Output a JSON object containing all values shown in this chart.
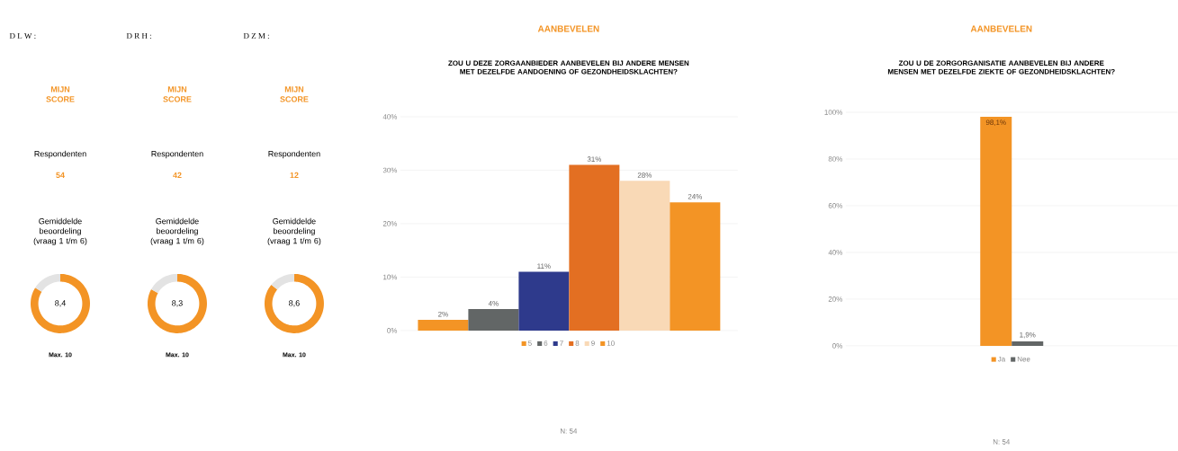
{
  "chart_data": [
    {
      "type": "donut",
      "title": "D L W :",
      "subtitle": "MIJN SCORE",
      "categories": [
        null,
        null
      ],
      "values": [
        84,
        16
      ],
      "colors": [
        "#f39425",
        "#e3e3e3"
      ],
      "annotations": [
        "Respondenten",
        "54",
        "Gemiddelde beoordeling (vraag 1 t/m 6)",
        "8,4",
        "Max. 10"
      ]
    },
    {
      "type": "donut",
      "title": "D R H :",
      "subtitle": "MIJN SCORE",
      "categories": [
        null,
        null
      ],
      "values": [
        83,
        17
      ],
      "colors": [
        "#f39425",
        "#e3e3e3"
      ],
      "annotations": [
        "Respondenten",
        "42",
        "Gemiddelde beoordeling (vraag 1 t/m 6)",
        "8,3",
        "Max. 10"
      ]
    },
    {
      "type": "donut",
      "title": "D Z M :",
      "subtitle": "MIJN SCORE",
      "categories": [
        null,
        null
      ],
      "values": [
        86,
        14
      ],
      "colors": [
        "#f39425",
        "#e3e3e3"
      ],
      "annotations": [
        "Respondenten",
        "12",
        "Gemiddelde beoordeling (vraag 1 t/m 6)",
        "8,6",
        "Max. 10"
      ]
    },
    {
      "type": "bar",
      "title": "AANBEVELEN",
      "subtitle": "ZOU U DEZE ZORGAANBIEDER AANBEVELEN BIJ ANDERE MENSEN MET DEZELFDE AANDOENING OF GEZONDHEIDSKLACHTEN?",
      "categories": [
        null
      ],
      "series": [
        {
          "name": "5",
          "color": "#f39425",
          "values": [
            2
          ],
          "value_labels": [
            "2%"
          ]
        },
        {
          "name": "6",
          "color": "#626666",
          "values": [
            4
          ],
          "value_labels": [
            "4%"
          ]
        },
        {
          "name": "7",
          "color": "#2e3a8c",
          "values": [
            11
          ],
          "value_labels": [
            "11%"
          ]
        },
        {
          "name": "8",
          "color": "#e36f22",
          "values": [
            31
          ],
          "value_labels": [
            "31%"
          ]
        },
        {
          "name": "9",
          "color": "#f9d9b6",
          "values": [
            28
          ],
          "value_labels": [
            "28%"
          ]
        },
        {
          "name": "10",
          "color": "#f39425",
          "values": [
            24
          ],
          "value_labels": [
            "24%"
          ]
        }
      ],
      "ylim": [
        0,
        40
      ],
      "yticks": [
        {
          "value": 0,
          "label": "0%"
        },
        {
          "value": 10,
          "label": "10%"
        },
        {
          "value": 20,
          "label": "20%"
        },
        {
          "value": 30,
          "label": "30%"
        },
        {
          "value": 40,
          "label": "40%"
        }
      ],
      "grid": "y",
      "legend": "bottom",
      "annotations": [
        "N: 54"
      ]
    },
    {
      "type": "bar",
      "title": "AANBEVELEN",
      "subtitle": "ZOU U DE ZORGORGANISATIE AANBEVELEN BIJ ANDERE MENSEN MET DEZELFDE ZIEKTE OF GEZONDHEIDSKLACHTEN?",
      "categories": [
        null
      ],
      "series": [
        {
          "name": "Ja",
          "color": "#f39425",
          "values": [
            98.1
          ],
          "value_labels": [
            "98,1%"
          ]
        },
        {
          "name": "Nee",
          "color": "#626666",
          "values": [
            1.9
          ],
          "value_labels": [
            "1,9%"
          ]
        }
      ],
      "ylim": [
        0,
        100
      ],
      "yticks": [
        {
          "value": 0,
          "label": "0%"
        },
        {
          "value": 20,
          "label": "20%"
        },
        {
          "value": 40,
          "label": "40%"
        },
        {
          "value": 60,
          "label": "60%"
        },
        {
          "value": 80,
          "label": "80%"
        },
        {
          "value": 100,
          "label": "100%"
        }
      ],
      "grid": "y",
      "legend": "bottom",
      "annotations": [
        "N: 54"
      ]
    }
  ]
}
